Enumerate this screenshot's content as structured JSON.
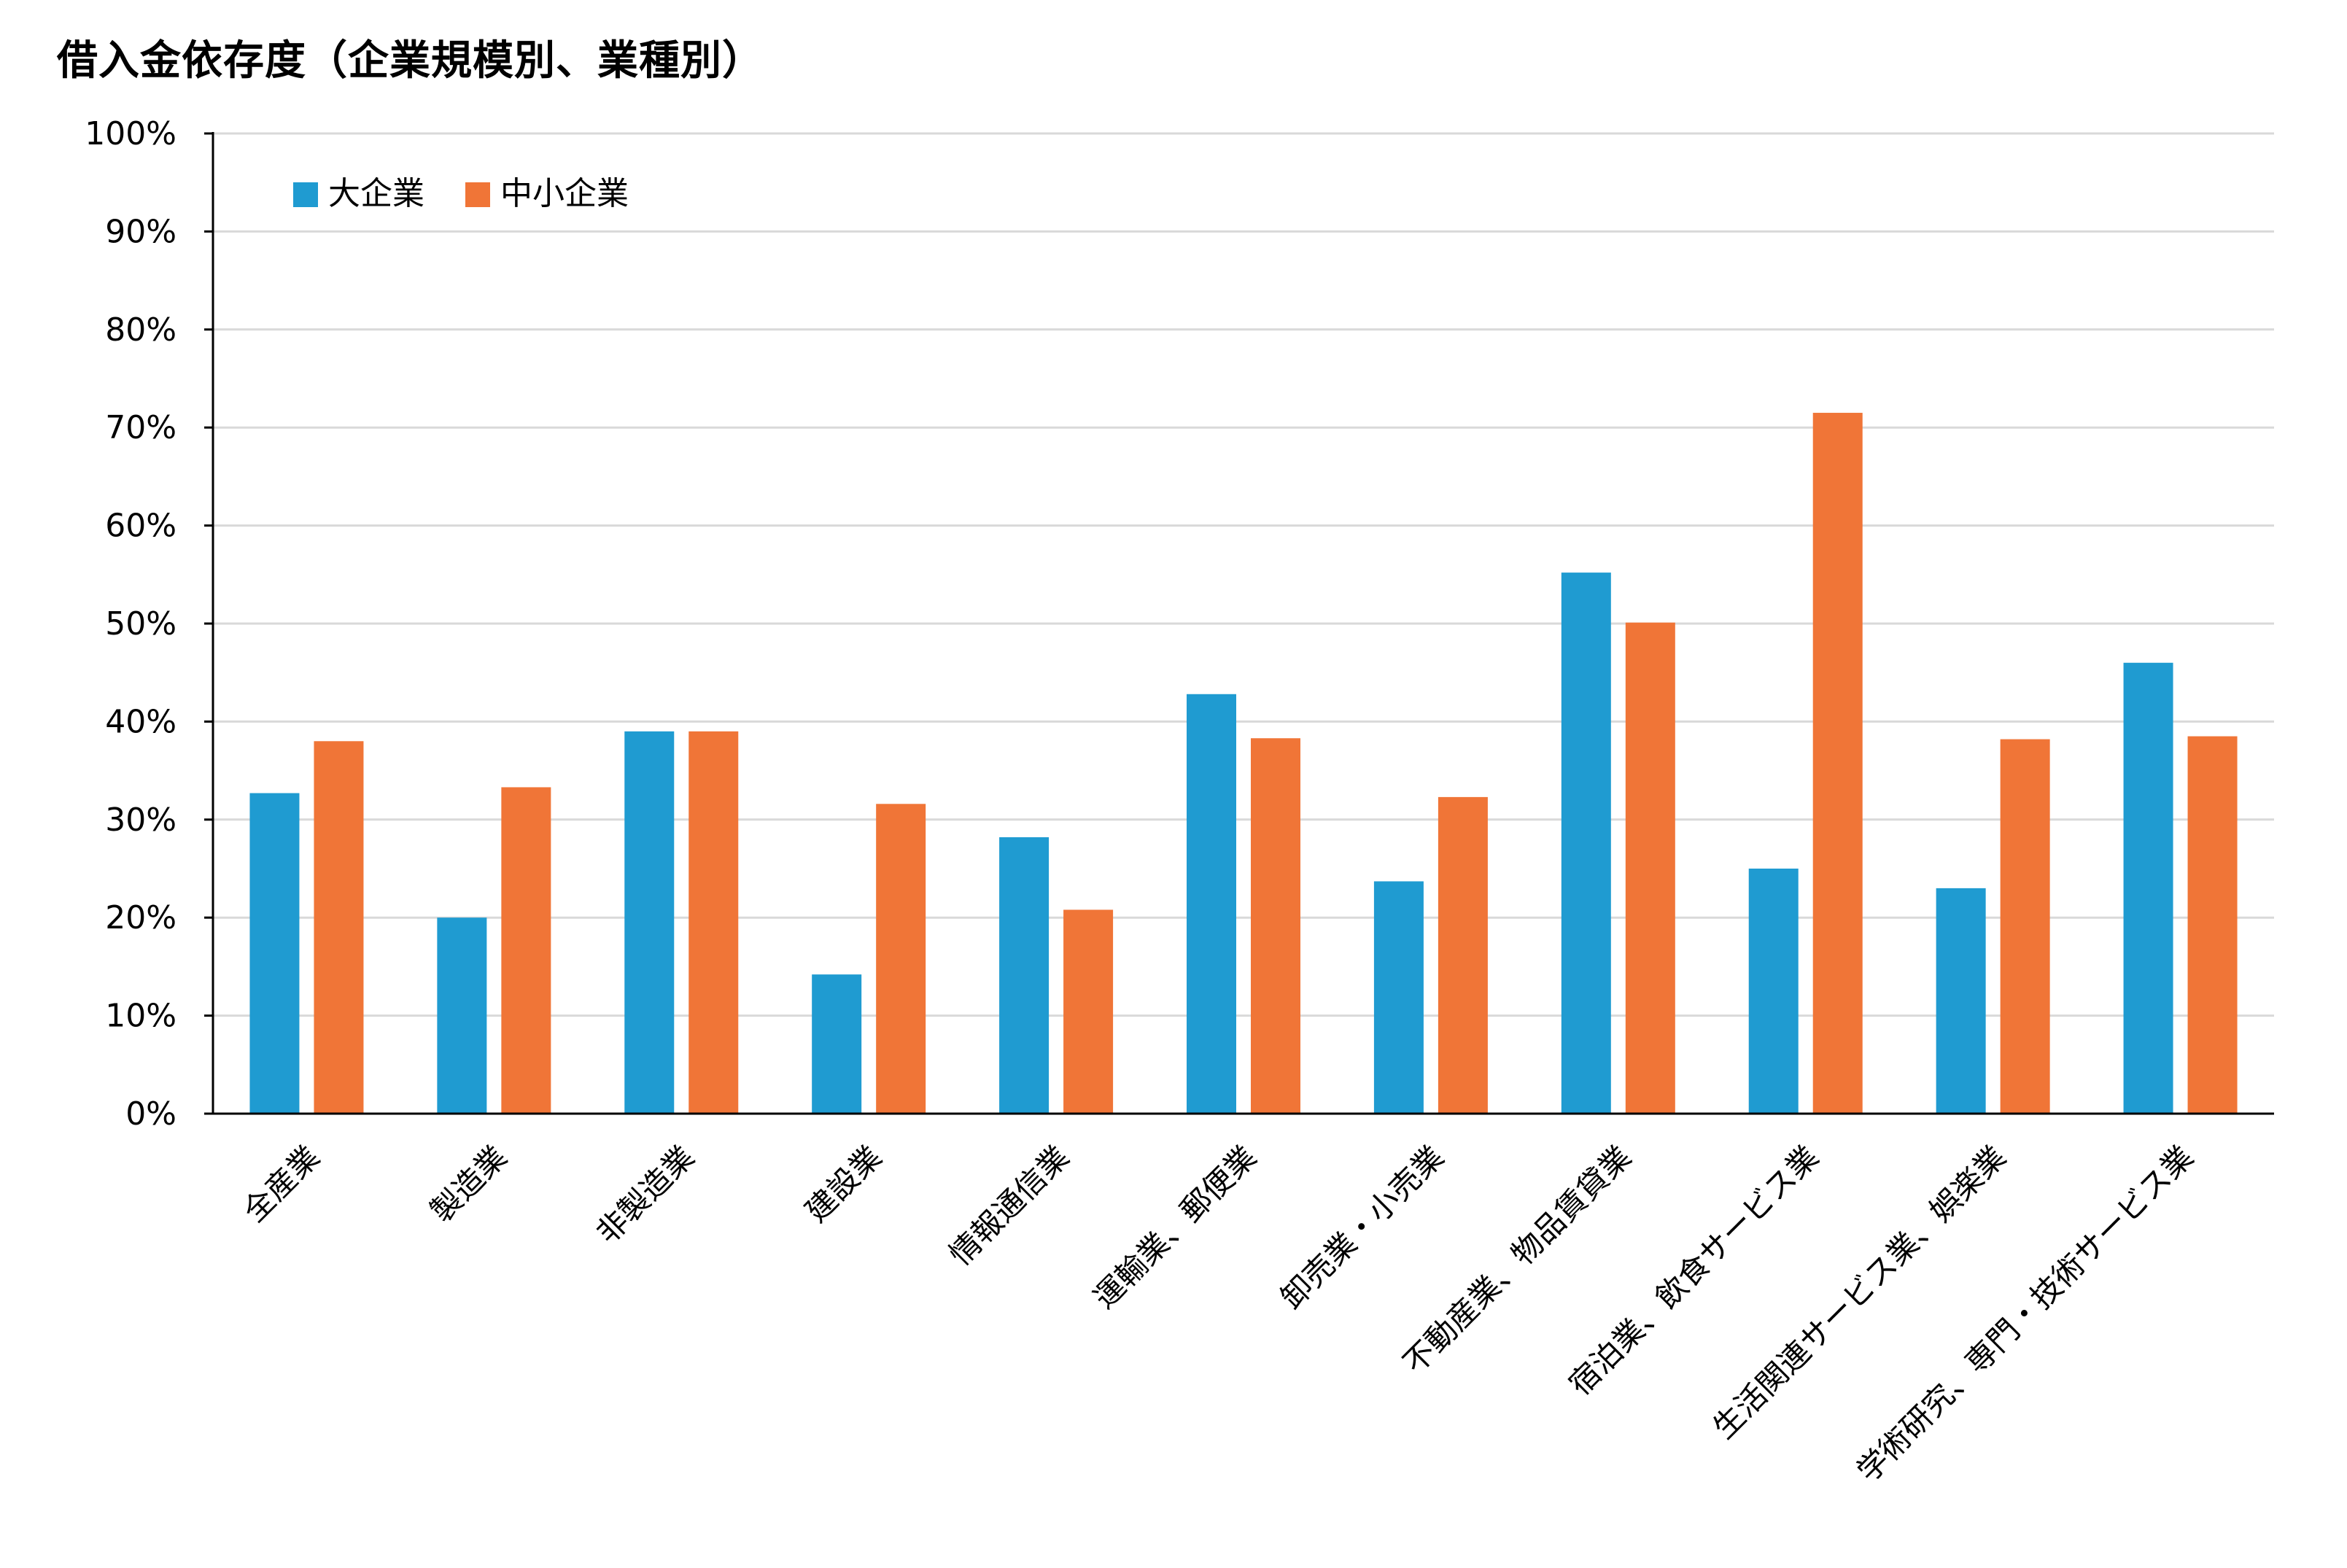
{
  "chart_data": {
    "type": "bar",
    "title": "借入金依存度（企業規模別、業種別）",
    "categories": [
      "全産業",
      "製造業",
      "非製造業",
      "建設業",
      "情報通信業",
      "運輸業、郵便業",
      "卸売業・小売業",
      "不動産業、物品賃貸業",
      "宿泊業、飲食サービス業",
      "生活関連サービス業、娯楽業",
      "学術研究、専門・技術サービス業"
    ],
    "series": [
      {
        "name": "大企業",
        "color": "#1f9bd1",
        "values": [
          32.7,
          20.0,
          39.0,
          14.2,
          28.2,
          42.8,
          23.7,
          55.2,
          25.0,
          23.0,
          46.0
        ]
      },
      {
        "name": "中小企業",
        "color": "#f07537",
        "values": [
          38.0,
          33.3,
          39.0,
          31.6,
          20.8,
          38.3,
          32.3,
          50.1,
          71.5,
          38.2,
          38.5
        ]
      }
    ],
    "yticks": [
      "0%",
      "10%",
      "20%",
      "30%",
      "40%",
      "50%",
      "60%",
      "70%",
      "80%",
      "90%",
      "100%"
    ],
    "ylim": [
      0,
      100
    ],
    "xlabel": "",
    "ylabel": "",
    "grid": true,
    "legend_position": "top-left"
  }
}
